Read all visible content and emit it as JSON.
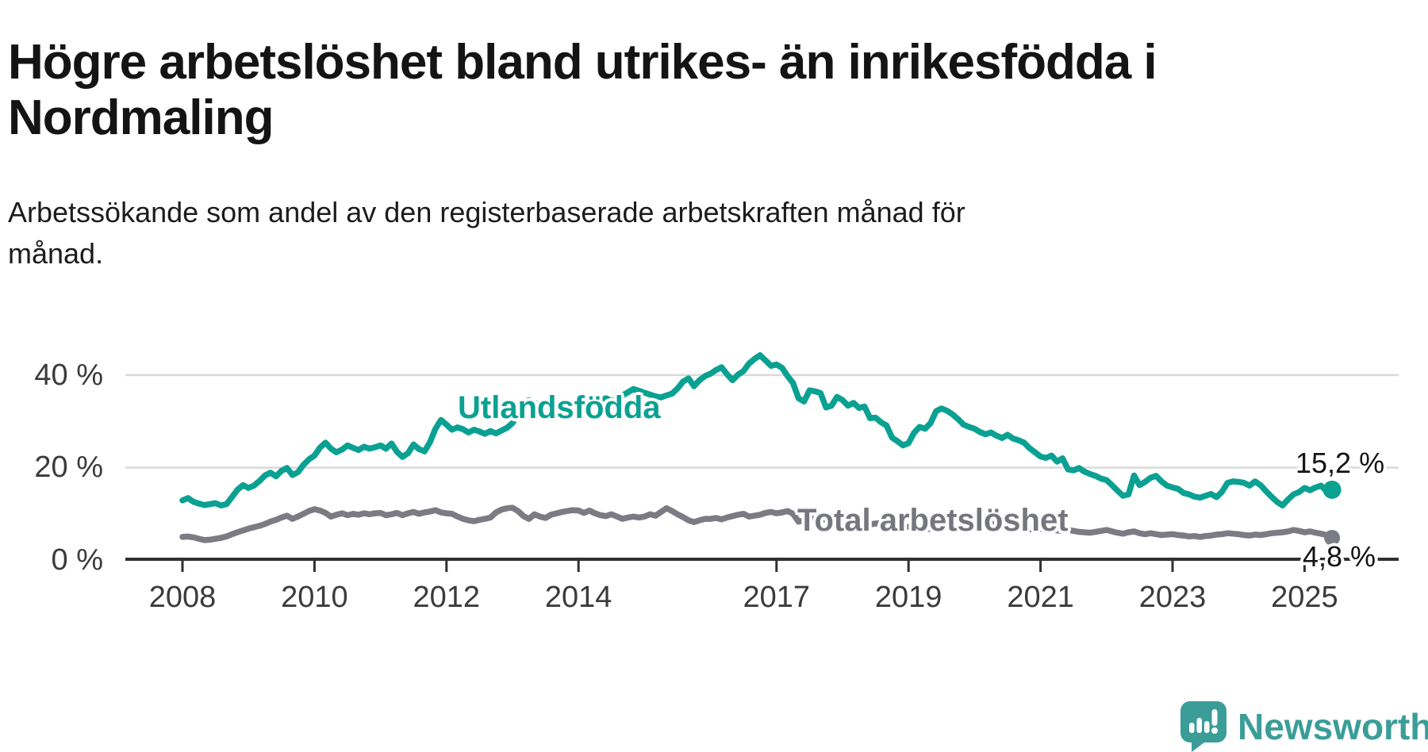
{
  "title": {
    "full": "Högre arbetslöshet bland utrikes- än inrikesfödda i Nordmaling",
    "line1": "Högre arbetslöshet bland utrikes- än inrikesfödda i",
    "line2": "Nordmaling"
  },
  "subtitle": {
    "full": "Arbetssökande som andel av den registerbaserade arbetskraften månad för månad.",
    "line1": "Arbetssökande som andel av den registerbaserade arbetskraften månad för",
    "line2": "månad."
  },
  "branding": {
    "logo_text": "Newsworthy",
    "logo_color": "#3b9d98"
  },
  "chart_data": {
    "type": "line",
    "unit": "%",
    "x_start": "2008-01",
    "x_end": "2025-06",
    "frequency": "monthly",
    "xlim": [
      2008,
      2025.5
    ],
    "ylim": [
      0,
      45
    ],
    "grid": "horizontal",
    "legend_position": "inline-labels",
    "x_ticks": [
      2008,
      2010,
      2012,
      2014,
      2017,
      2019,
      2021,
      2023,
      2025
    ],
    "y_axis": {
      "ticks": [
        {
          "label": "0 %",
          "value": 0
        },
        {
          "label": "20 %",
          "value": 20
        },
        {
          "label": "40 %",
          "value": 40
        }
      ]
    },
    "series": [
      {
        "name": "Utlandsfödda",
        "color": "#0aa192",
        "end_label": "15,2 %",
        "end_value": 15.2,
        "values": [
          12.9,
          13.4,
          12.6,
          12.2,
          11.9,
          12.1,
          12.3,
          11.8,
          12.1,
          13.6,
          15.2,
          16.2,
          15.6,
          16.1,
          17.1,
          18.3,
          18.9,
          18.1,
          19.3,
          19.9,
          18.4,
          19.0,
          20.6,
          21.8,
          22.6,
          24.3,
          25.4,
          24.1,
          23.3,
          23.9,
          24.8,
          24.3,
          23.8,
          24.5,
          24.1,
          24.4,
          24.8,
          24.1,
          25.2,
          23.4,
          22.3,
          23.1,
          25.0,
          24.0,
          23.5,
          25.5,
          28.4,
          30.3,
          29.3,
          28.2,
          28.7,
          28.3,
          27.6,
          28.2,
          27.8,
          27.3,
          27.9,
          27.4,
          28.0,
          28.6,
          29.6,
          31.8,
          33.6,
          34.6,
          34.0,
          33.5,
          34.2,
          33.8,
          33.2,
          33.9,
          34.4,
          33.8,
          34.3,
          34.9,
          34.2,
          33.7,
          34.5,
          35.0,
          34.4,
          34.9,
          35.6,
          36.3,
          37.0,
          36.6,
          36.2,
          35.8,
          35.4,
          35.2,
          35.6,
          36.0,
          37.1,
          38.6,
          39.3,
          37.6,
          38.9,
          39.8,
          40.3,
          41.1,
          41.7,
          40.2,
          38.9,
          40.1,
          40.9,
          42.5,
          43.5,
          44.3,
          43.2,
          42.0,
          42.3,
          41.6,
          39.8,
          38.3,
          35.0,
          34.3,
          36.7,
          36.5,
          36.1,
          33.0,
          33.4,
          35.3,
          34.6,
          33.4,
          34.0,
          32.9,
          33.2,
          30.7,
          30.8,
          29.8,
          29.1,
          26.5,
          25.7,
          24.8,
          25.3,
          27.5,
          28.8,
          28.4,
          29.6,
          32.2,
          32.8,
          32.3,
          31.5,
          30.5,
          29.3,
          28.8,
          28.4,
          27.7,
          27.2,
          27.6,
          26.9,
          26.4,
          27.1,
          26.3,
          25.9,
          25.4,
          24.2,
          23.3,
          22.4,
          22.1,
          22.6,
          21.3,
          22.0,
          19.6,
          19.4,
          19.9,
          19.1,
          18.6,
          18.2,
          17.6,
          17.3,
          16.2,
          15.0,
          13.9,
          14.2,
          18.3,
          16.2,
          16.9,
          17.8,
          18.2,
          17.0,
          16.1,
          15.7,
          15.4,
          14.5,
          14.2,
          13.7,
          13.5,
          13.9,
          14.3,
          13.6,
          14.8,
          16.7,
          17.0,
          16.9,
          16.7,
          16.1,
          17.0,
          16.2,
          14.9,
          13.7,
          12.6,
          11.8,
          13.1,
          14.2,
          14.7,
          15.6,
          15.1,
          15.7,
          16.1,
          14.9,
          15.2
        ]
      },
      {
        "name": "Total arbetslöshet",
        "color": "#7b7b83",
        "end_label": "4,8 %",
        "end_value": 4.8,
        "values": [
          5.0,
          5.1,
          4.9,
          4.6,
          4.3,
          4.4,
          4.6,
          4.8,
          5.1,
          5.6,
          6.0,
          6.4,
          6.8,
          7.1,
          7.4,
          7.8,
          8.3,
          8.7,
          9.2,
          9.6,
          8.9,
          9.4,
          10.0,
          10.6,
          11.0,
          10.7,
          10.2,
          9.4,
          9.8,
          10.1,
          9.7,
          10.0,
          9.8,
          10.1,
          9.9,
          10.1,
          10.2,
          9.7,
          9.9,
          10.2,
          9.7,
          10.1,
          10.4,
          10.0,
          10.3,
          10.5,
          10.8,
          10.3,
          10.1,
          10.0,
          9.4,
          8.9,
          8.6,
          8.4,
          8.7,
          8.9,
          9.2,
          10.3,
          10.9,
          11.2,
          11.3,
          10.6,
          9.5,
          8.9,
          9.9,
          9.4,
          9.1,
          9.8,
          10.1,
          10.4,
          10.6,
          10.8,
          10.7,
          10.2,
          10.7,
          10.1,
          9.7,
          9.5,
          9.9,
          9.4,
          8.9,
          9.2,
          9.4,
          9.2,
          9.4,
          9.9,
          9.6,
          10.4,
          11.2,
          10.6,
          9.9,
          9.3,
          8.6,
          8.2,
          8.6,
          8.9,
          8.9,
          9.1,
          8.8,
          9.2,
          9.5,
          9.8,
          10.0,
          9.4,
          9.6,
          9.8,
          10.2,
          10.4,
          10.1,
          10.3,
          10.6,
          10.0,
          8.3,
          8.6,
          8.9,
          9.1,
          8.9,
          8.7,
          8.5,
          8.7,
          8.8,
          8.6,
          8.4,
          8.1,
          7.9,
          7.7,
          7.9,
          8.0,
          7.7,
          7.5,
          7.3,
          7.1,
          7.2,
          7.4,
          7.1,
          6.9,
          6.7,
          6.9,
          7.1,
          7.0,
          6.8,
          6.7,
          6.6,
          6.8,
          7.0,
          7.3,
          7.6,
          7.9,
          7.7,
          7.5,
          7.3,
          7.1,
          7.0,
          6.9,
          6.7,
          6.6,
          6.7,
          6.8,
          6.6,
          6.4,
          6.3,
          6.5,
          6.3,
          6.1,
          6.0,
          5.9,
          6.1,
          6.3,
          6.5,
          6.2,
          5.9,
          5.7,
          6.0,
          6.2,
          5.8,
          5.6,
          5.8,
          5.6,
          5.4,
          5.5,
          5.6,
          5.4,
          5.3,
          5.1,
          5.2,
          5.0,
          5.2,
          5.3,
          5.5,
          5.6,
          5.8,
          5.7,
          5.6,
          5.4,
          5.3,
          5.5,
          5.4,
          5.6,
          5.8,
          5.9,
          6.0,
          6.2,
          6.5,
          6.3,
          6.0,
          6.2,
          5.9,
          5.7,
          5.4,
          4.8
        ]
      }
    ]
  }
}
